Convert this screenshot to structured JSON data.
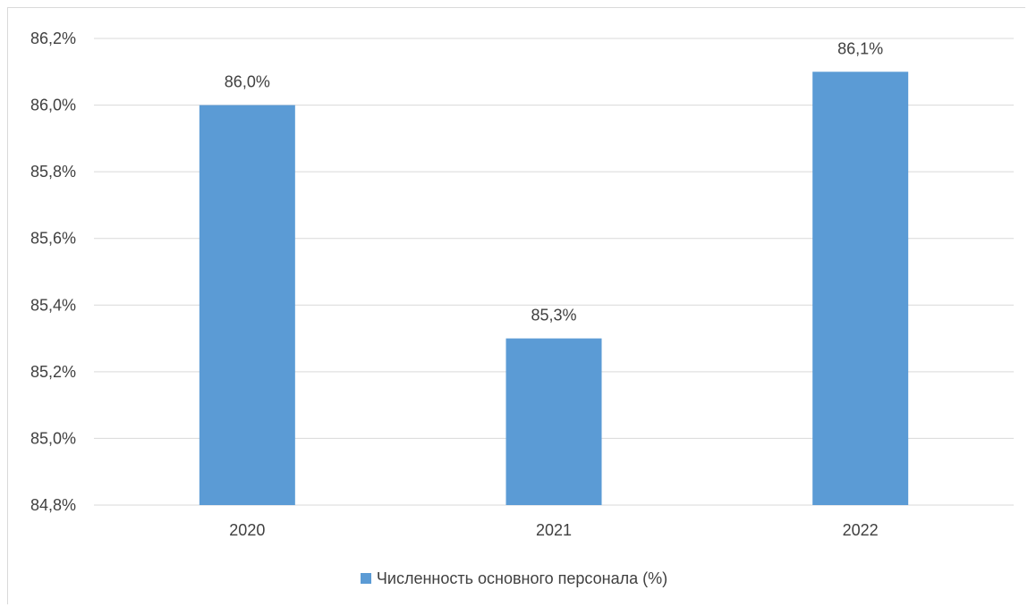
{
  "chart_data": {
    "type": "bar",
    "categories": [
      "2020",
      "2021",
      "2022"
    ],
    "series": [
      {
        "name": "Численность основного персонала (%)",
        "values": [
          86.0,
          85.3,
          86.1
        ],
        "labels": [
          "86,0%",
          "85,3%",
          "86,1%"
        ]
      }
    ],
    "ylim": [
      84.8,
      86.2
    ],
    "yticks": [
      84.8,
      85.0,
      85.2,
      85.4,
      85.6,
      85.8,
      86.0,
      86.2
    ],
    "ytick_labels": [
      "84,8%",
      "85,0%",
      "85,2%",
      "85,4%",
      "85,6%",
      "85,8%",
      "86,0%",
      "86,2%"
    ],
    "grid": true,
    "legend_position": "bottom",
    "bar_color": "#5b9bd5"
  }
}
